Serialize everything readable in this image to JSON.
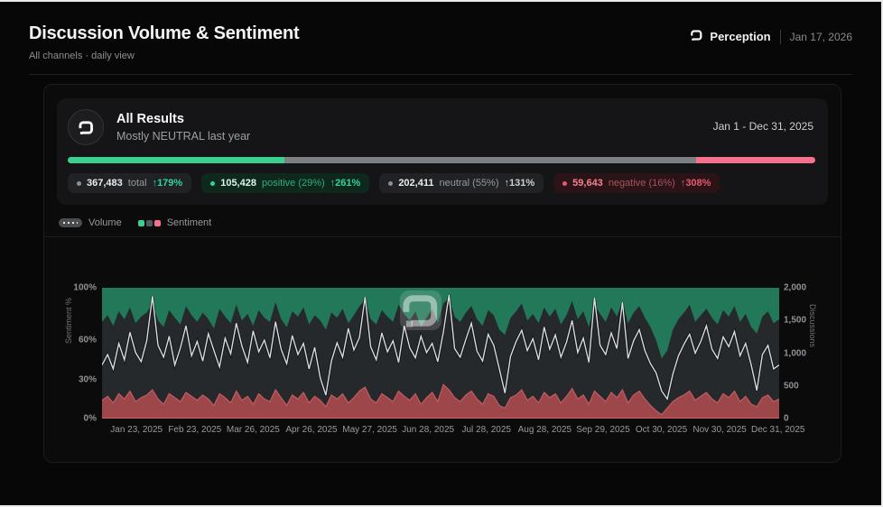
{
  "header": {
    "title": "Discussion Volume & Sentiment",
    "subtitle": "All channels · daily view",
    "brand": "Perception",
    "date": "Jan 17, 2026"
  },
  "summary": {
    "title": "All Results",
    "subtitle": "Mostly NEUTRAL last year",
    "date_range": "Jan 1 - Dec 31, 2025",
    "sentiment_bar": {
      "positive_pct": 29,
      "neutral_pct": 55,
      "negative_pct": 16
    },
    "badges": [
      {
        "kind": "total",
        "value": "367,483",
        "label": "total",
        "change": "↑179%"
      },
      {
        "kind": "positive",
        "value": "105,428",
        "label": "positive (29%)",
        "change": "↑261%"
      },
      {
        "kind": "neutral",
        "value": "202,411",
        "label": "neutral (55%)",
        "change": "↑131%"
      },
      {
        "kind": "negative",
        "value": "59,643",
        "label": "negative (16%)",
        "change": "↑308%"
      }
    ]
  },
  "legend": {
    "volume": "Volume",
    "sentiment": "Sentiment"
  },
  "colors": {
    "accent_green": "#3ad08f",
    "accent_pink": "#f8718c",
    "bar_neutral": "#7c8084",
    "chart_positive": "#21795a",
    "chart_neutral": "#26292c",
    "chart_negative": "#9d474b",
    "negative_edge": "#c15c62",
    "volume_line": "#d8dce0"
  },
  "chart_data": {
    "type": "area",
    "title": "Discussion Volume & Sentiment",
    "subtitle": "stacked sentiment share (%) with volume line overlay, daily",
    "stacking": "negative at bottom, neutral in middle, positive on top to 100%",
    "left_axis": {
      "label": "Sentiment %",
      "ticks": [
        "100%",
        "60%",
        "30%",
        "0%"
      ],
      "tick_pcts": [
        100,
        60,
        30,
        0
      ],
      "range": [
        0,
        100
      ]
    },
    "right_axis": {
      "label": "Discussions",
      "ticks": [
        "2,000",
        "1,500",
        "1,000",
        "500",
        "0"
      ],
      "tick_values": [
        2000,
        1500,
        1000,
        500,
        0
      ],
      "range": [
        0,
        2000
      ]
    },
    "x_ticks": [
      "Jan 23, 2025",
      "Feb 23, 2025",
      "Mar 26, 2025",
      "Apr 26, 2025",
      "May 27, 2025",
      "Jun 28, 2025",
      "Jul 28, 2025",
      "Aug 28, 2025",
      "Sep 29, 2025",
      "Oct 30, 2025",
      "Nov 30, 2025",
      "Dec 31, 2025"
    ],
    "series": {
      "neutral_plus_negative_pct": [
        74,
        79,
        71,
        82,
        76,
        85,
        73,
        78,
        81,
        88,
        75,
        70,
        83,
        77,
        72,
        86,
        79,
        74,
        81,
        76,
        69,
        84,
        78,
        73,
        87,
        75,
        80,
        71,
        83,
        77,
        74,
        89,
        76,
        70,
        82,
        78,
        85,
        72,
        79,
        75,
        68,
        81,
        77,
        84,
        73,
        79,
        86,
        91,
        76,
        72,
        83,
        78,
        74,
        87,
        80,
        75,
        82,
        70,
        77,
        84,
        73,
        88,
        92,
        78,
        74,
        81,
        86,
        76,
        71,
        83,
        79,
        68,
        64,
        77,
        82,
        88,
        75,
        80,
        73,
        85,
        78,
        84,
        72,
        79,
        90,
        76,
        82,
        70,
        87,
        80,
        74,
        85,
        78,
        89,
        73,
        81,
        86,
        77,
        70,
        60,
        46,
        52,
        68,
        76,
        81,
        87,
        74,
        79,
        84,
        77,
        72,
        83,
        78,
        86,
        74,
        80,
        70,
        65,
        78,
        82,
        73,
        76
      ],
      "negative_pct": [
        14,
        17,
        12,
        19,
        15,
        21,
        13,
        16,
        18,
        22,
        15,
        11,
        19,
        16,
        13,
        20,
        17,
        14,
        18,
        15,
        10,
        19,
        16,
        12,
        21,
        14,
        17,
        11,
        19,
        15,
        13,
        22,
        16,
        10,
        18,
        15,
        20,
        12,
        17,
        14,
        9,
        18,
        15,
        19,
        12,
        16,
        21,
        24,
        15,
        12,
        19,
        16,
        13,
        21,
        17,
        14,
        19,
        11,
        16,
        20,
        13,
        26,
        22,
        16,
        13,
        18,
        21,
        15,
        11,
        19,
        17,
        10,
        8,
        16,
        18,
        22,
        14,
        17,
        12,
        20,
        16,
        19,
        12,
        17,
        23,
        15,
        18,
        11,
        21,
        17,
        13,
        20,
        16,
        22,
        12,
        18,
        21,
        15,
        10,
        6,
        3,
        8,
        13,
        16,
        18,
        21,
        14,
        17,
        20,
        15,
        12,
        19,
        16,
        21,
        13,
        17,
        11,
        9,
        16,
        18,
        13,
        15
      ],
      "volume": [
        820,
        980,
        760,
        1150,
        900,
        1320,
        1010,
        870,
        1190,
        1870,
        1120,
        940,
        1260,
        820,
        1080,
        1420,
        960,
        1180,
        880,
        1300,
        1040,
        790,
        1230,
        990,
        1460,
        1110,
        860,
        1340,
        1020,
        1200,
        930,
        1480,
        1060,
        840,
        1270,
        980,
        1150,
        760,
        1090,
        620,
        360,
        880,
        1160,
        940,
        1380,
        1050,
        1240,
        1860,
        1100,
        900,
        1310,
        1020,
        1190,
        860,
        1420,
        1080,
        930,
        1260,
        1010,
        1150,
        870,
        1330,
        1890,
        1070,
        940,
        1210,
        1460,
        1030,
        880,
        1290,
        1120,
        760,
        390,
        950,
        1180,
        1350,
        1040,
        1220,
        900,
        1400,
        1060,
        1280,
        940,
        1170,
        1500,
        1010,
        1230,
        860,
        1850,
        1120,
        980,
        1310,
        1070,
        1780,
        920,
        1190,
        1360,
        1040,
        840,
        700,
        420,
        300,
        680,
        960,
        1140,
        1290,
        1000,
        1180,
        1420,
        1060,
        920,
        1250,
        1100,
        1330,
        960,
        1150,
        820,
        430,
        980,
        1120,
        760,
        820
      ]
    }
  }
}
